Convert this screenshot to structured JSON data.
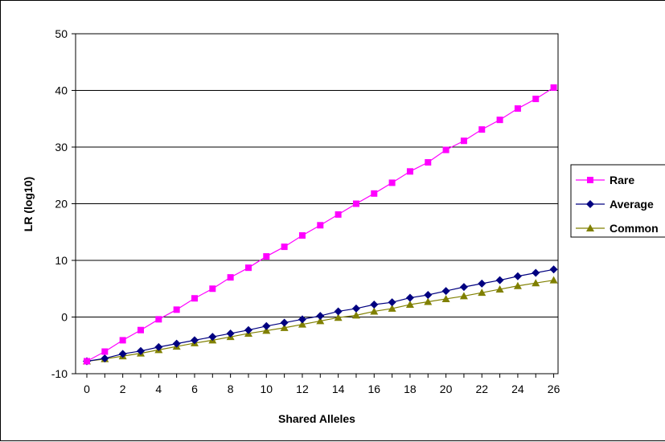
{
  "chart_data": {
    "type": "line",
    "title": "",
    "xlabel": "Shared Alleles",
    "ylabel": "LR (log10)",
    "xlim": [
      0,
      26
    ],
    "ylim": [
      -10,
      50
    ],
    "x_ticks": [
      "0",
      "2",
      "4",
      "6",
      "8",
      "10",
      "12",
      "14",
      "16",
      "18",
      "20",
      "22",
      "24",
      "26"
    ],
    "y_ticks": [
      "50",
      "40",
      "30",
      "20",
      "10",
      "0",
      "-10"
    ],
    "grid": "horizontal",
    "legend": "right",
    "x": [
      0,
      1,
      2,
      3,
      4,
      5,
      6,
      7,
      8,
      9,
      10,
      11,
      12,
      13,
      14,
      15,
      16,
      17,
      18,
      19,
      20,
      21,
      22,
      23,
      24,
      25,
      26
    ],
    "series": [
      {
        "name": "Rare",
        "color": "#ff00ff",
        "marker": "square",
        "values": [
          -7.8,
          -6.1,
          -4.1,
          -2.3,
          -0.4,
          1.3,
          3.3,
          5.0,
          7.0,
          8.7,
          10.7,
          12.4,
          14.4,
          16.2,
          18.1,
          20.0,
          21.8,
          23.7,
          25.7,
          27.3,
          29.5,
          31.1,
          33.1,
          34.8,
          36.8,
          38.5,
          40.5
        ]
      },
      {
        "name": "Average",
        "color": "#000080",
        "marker": "diamond",
        "values": [
          -7.8,
          -7.3,
          -6.5,
          -6.0,
          -5.3,
          -4.7,
          -4.1,
          -3.5,
          -2.9,
          -2.3,
          -1.6,
          -1.0,
          -0.4,
          0.2,
          1.0,
          1.5,
          2.2,
          2.6,
          3.4,
          3.9,
          4.6,
          5.3,
          5.9,
          6.5,
          7.2,
          7.8,
          8.4
        ]
      },
      {
        "name": "Common",
        "color": "#808000",
        "marker": "triangle",
        "values": [
          -7.8,
          -7.4,
          -6.9,
          -6.4,
          -5.8,
          -5.2,
          -4.6,
          -4.1,
          -3.5,
          -2.9,
          -2.4,
          -1.9,
          -1.3,
          -0.7,
          -0.1,
          0.3,
          1.0,
          1.5,
          2.2,
          2.7,
          3.2,
          3.7,
          4.3,
          4.9,
          5.5,
          6.0,
          6.5
        ]
      }
    ]
  }
}
